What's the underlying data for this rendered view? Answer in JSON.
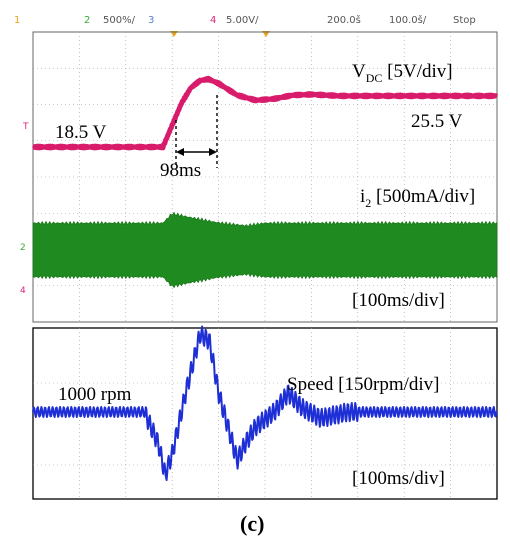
{
  "header": {
    "ch1_num": "1",
    "ch2_num": "2",
    "ch2_scale": "500%/",
    "ch3_num": "3",
    "ch4_num": "4",
    "ch4_scale": "5.00V/",
    "timebase": "200.0š",
    "position": "100.0š/",
    "run_state": "Stop"
  },
  "colors": {
    "ch1": "#e8a317",
    "ch2": "#3aaa35",
    "ch3": "#5b7fd6",
    "ch4": "#e0207c",
    "vdc_trace": "#d81b6a",
    "i2_trace": "#1f8a1f",
    "speed_trace": "#1f2fd6",
    "grid": "#9a9a9a"
  },
  "scope": {
    "marker_T": "T",
    "marker_2": "2",
    "marker_4": "4"
  },
  "labels": {
    "vdc_main": "V",
    "vdc_sub": "DC",
    "vdc_scale": " [5V/div]",
    "vdc_initial": "18.5 V",
    "vdc_final": "25.5 V",
    "delay": "98ms",
    "i2_main": "i",
    "i2_sub": "2",
    "i2_scale": " [500mA/div]",
    "timebase_top": "[100ms/div]",
    "speed_initial": "1000 rpm",
    "speed_name": "Speed [150rpm/div]",
    "timebase_bottom": "[100ms/div]",
    "caption": "(c)"
  },
  "chart_data": [
    {
      "type": "line",
      "xlabel": "[100ms/div]",
      "xlim": [
        0,
        1000
      ],
      "series": [
        {
          "name": "V_DC [5V/div]",
          "x": [
            0,
            280,
            300,
            320,
            340,
            360,
            378,
            400,
            440,
            480,
            520,
            560,
            600,
            660,
            720,
            800,
            900,
            1000
          ],
          "y": [
            18.5,
            18.5,
            21.5,
            24.5,
            26.6,
            27.6,
            27.8,
            27.2,
            25.6,
            24.9,
            25.1,
            25.6,
            25.7,
            25.5,
            25.5,
            25.5,
            25.5,
            25.5
          ]
        },
        {
          "name": "i2 [500mA/div]",
          "x": [
            0,
            280,
            300,
            340,
            400,
            460,
            500,
            1000
          ],
          "envelope_ma": [
            465,
            465,
            630,
            560,
            470,
            420,
            465,
            465
          ]
        }
      ],
      "annotations": [
        "18.5 V",
        "25.5 V",
        "98ms"
      ]
    },
    {
      "type": "line",
      "xlabel": "[100ms/div]",
      "xlim": [
        0,
        1000
      ],
      "series": [
        {
          "name": "Speed [150rpm/div]",
          "x": [
            0,
            240,
            270,
            285,
            300,
            330,
            360,
            380,
            400,
            440,
            460,
            480,
            520,
            550,
            580,
            620,
            680,
            1000
          ],
          "y": [
            1000,
            1000,
            925,
            850,
            900,
            1050,
            1185,
            1170,
            1045,
            885,
            930,
            965,
            1000,
            1045,
            1010,
            985,
            1000,
            1000
          ]
        }
      ],
      "annotations": [
        "1000 rpm"
      ]
    }
  ]
}
